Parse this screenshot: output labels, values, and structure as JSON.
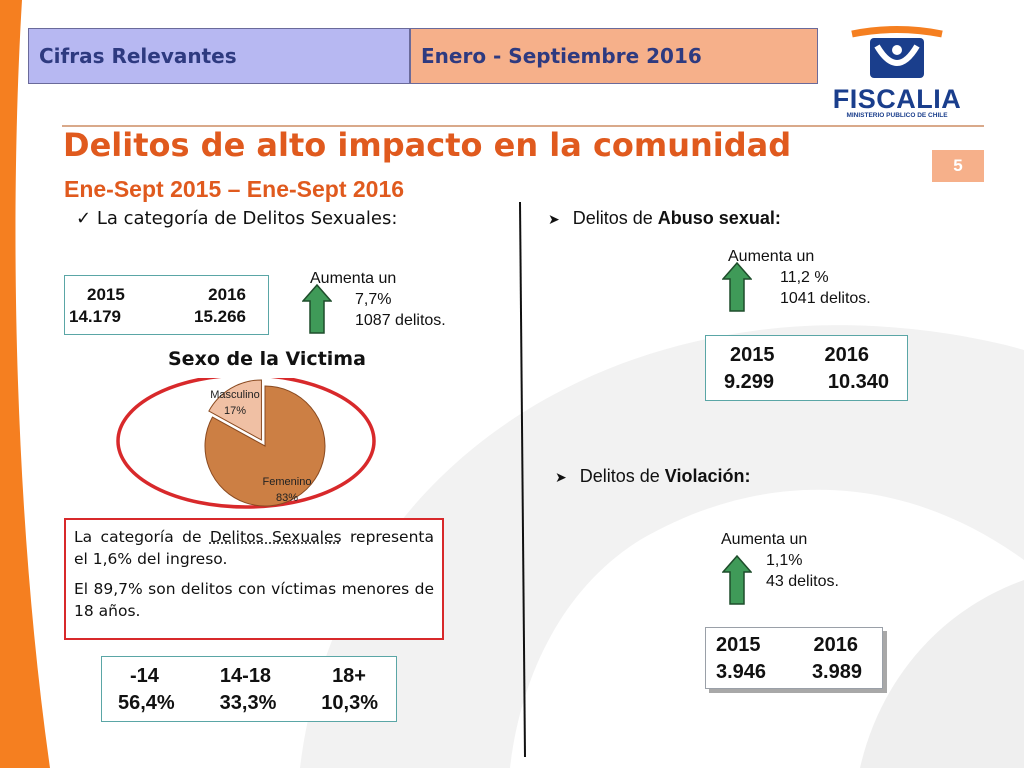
{
  "header": {
    "left": "Cifras Relevantes",
    "right": "Enero - Septiembre 2016"
  },
  "logo": {
    "text": "FISCALIA",
    "subtext": "MINISTERIO PUBLICO DE CHILE"
  },
  "title": "Delitos de alto impacto en la comunidad",
  "subtitle": "Ene-Sept 2015 – Ene-Sept 2016",
  "page_number": "5",
  "left": {
    "category_prefix": "La categoría de ",
    "category_name": "Delitos Sexuales:",
    "years": {
      "y1": "2015",
      "y2": "2016",
      "v1": "14.179",
      "v2": "15.266"
    },
    "increase": {
      "label": "Aumenta un",
      "percent": "7,7%",
      "delta": "1087 delitos.",
      "direction": "up"
    },
    "chart_data": {
      "type": "pie",
      "title": "Sexo de la Victima",
      "categories": [
        "Masculino",
        "Femenino"
      ],
      "values": [
        17,
        83
      ],
      "labels": [
        "17%",
        "83%"
      ],
      "colors": [
        "#f0c0a4",
        "#cc7f44"
      ]
    },
    "note": {
      "p1_prefix": "La categoría de ",
      "p1_name": "Delitos Sexuales",
      "p1_suffix": " representa el 1,6% del ingreso.",
      "p2": "El 89,7% son delitos con víctimas menores de 18 años."
    },
    "age_table": {
      "headers": [
        "-14",
        "14-18",
        "18+"
      ],
      "values": [
        "56,4%",
        "33,3%",
        "10,3%"
      ]
    }
  },
  "right": {
    "abuso": {
      "prefix": "Delitos de ",
      "name": "Abuso sexual:",
      "increase": {
        "label": "Aumenta un",
        "percent": "11,2 %",
        "delta": "1041 delitos.",
        "direction": "up"
      },
      "years": {
        "y1": "2015",
        "y2": "2016",
        "v1": "9.299",
        "v2": "10.340"
      }
    },
    "violacion": {
      "prefix": "Delitos de ",
      "name": "Violación:",
      "increase": {
        "label": "Aumenta un",
        "percent": "1,1%",
        "delta": "43 delitos.",
        "direction": "up"
      },
      "years": {
        "y1": "2015",
        "y2": "2016",
        "v1": "3.946",
        "v2": "3.989"
      }
    }
  },
  "colors": {
    "title": "#e05a1e",
    "header_left": "#b7b8f2",
    "header_right": "#f6b08a",
    "arrow": "#3f9a58",
    "highlight_ring": "#d8292b",
    "box_border": "#5aa6a6"
  }
}
